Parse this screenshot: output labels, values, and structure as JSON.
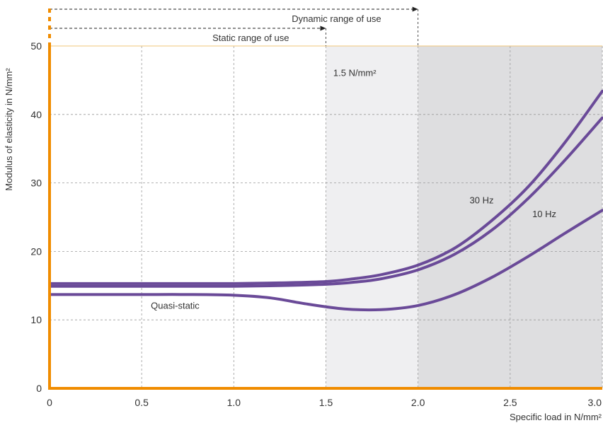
{
  "chart_data": {
    "type": "line",
    "xlabel": "Specific load in N/mm²",
    "ylabel": "Modulus of elasticity in N/mm²",
    "xlim": [
      0,
      3.0
    ],
    "ylim": [
      0,
      50
    ],
    "x_ticks": [
      "0",
      "0.5",
      "1.0",
      "1.5",
      "2.0",
      "2.5",
      "3.0"
    ],
    "y_ticks": [
      "0",
      "10",
      "20",
      "30",
      "40",
      "50"
    ],
    "grid": true,
    "regions": [
      {
        "x_from": 1.5,
        "x_to": 2.0,
        "color": "#efeff1"
      },
      {
        "x_from": 2.0,
        "x_to": 3.0,
        "color": "#dedee0"
      }
    ],
    "ranges": [
      {
        "label": "Dynamic range of use",
        "x_from": 0,
        "x_to": 2.0
      },
      {
        "label": "Static range of use",
        "x_from": 0,
        "x_to": 1.5
      }
    ],
    "annotations": [
      {
        "text": "1.5 N/mm²",
        "x": 1.54,
        "y": 45.6
      },
      {
        "text": "30 Hz",
        "x": 2.28,
        "y": 27.0
      },
      {
        "text": "10 Hz",
        "x": 2.62,
        "y": 25.0
      },
      {
        "text": "Quasi-static",
        "x": 0.55,
        "y": 11.6
      }
    ],
    "series": [
      {
        "name": "30 Hz",
        "x": [
          0,
          0.25,
          0.5,
          0.75,
          1.0,
          1.25,
          1.5,
          1.65,
          1.8,
          2.0,
          2.2,
          2.4,
          2.6,
          2.8,
          3.0
        ],
        "values": [
          15.3,
          15.3,
          15.3,
          15.3,
          15.3,
          15.4,
          15.6,
          16.0,
          16.6,
          18.0,
          20.5,
          24.5,
          29.5,
          36.0,
          43.4
        ]
      },
      {
        "name": "10 Hz",
        "x": [
          0,
          0.25,
          0.5,
          0.75,
          1.0,
          1.25,
          1.5,
          1.65,
          1.8,
          2.0,
          2.2,
          2.4,
          2.6,
          2.8,
          3.0
        ],
        "values": [
          14.9,
          14.9,
          14.9,
          14.9,
          14.9,
          15.0,
          15.2,
          15.5,
          16.0,
          17.3,
          19.6,
          23.1,
          27.8,
          33.4,
          39.5
        ]
      },
      {
        "name": "Quasi-static",
        "x": [
          0,
          0.25,
          0.5,
          0.75,
          1.0,
          1.2,
          1.4,
          1.6,
          1.8,
          2.0,
          2.2,
          2.4,
          2.6,
          2.8,
          3.0
        ],
        "values": [
          13.7,
          13.7,
          13.7,
          13.7,
          13.6,
          13.2,
          12.3,
          11.6,
          11.5,
          12.1,
          13.7,
          16.2,
          19.3,
          22.7,
          26.0
        ]
      }
    ],
    "colors": {
      "curve": "#6a4a98",
      "axis": "#f08c00",
      "grid": "#9a9a9a"
    }
  }
}
